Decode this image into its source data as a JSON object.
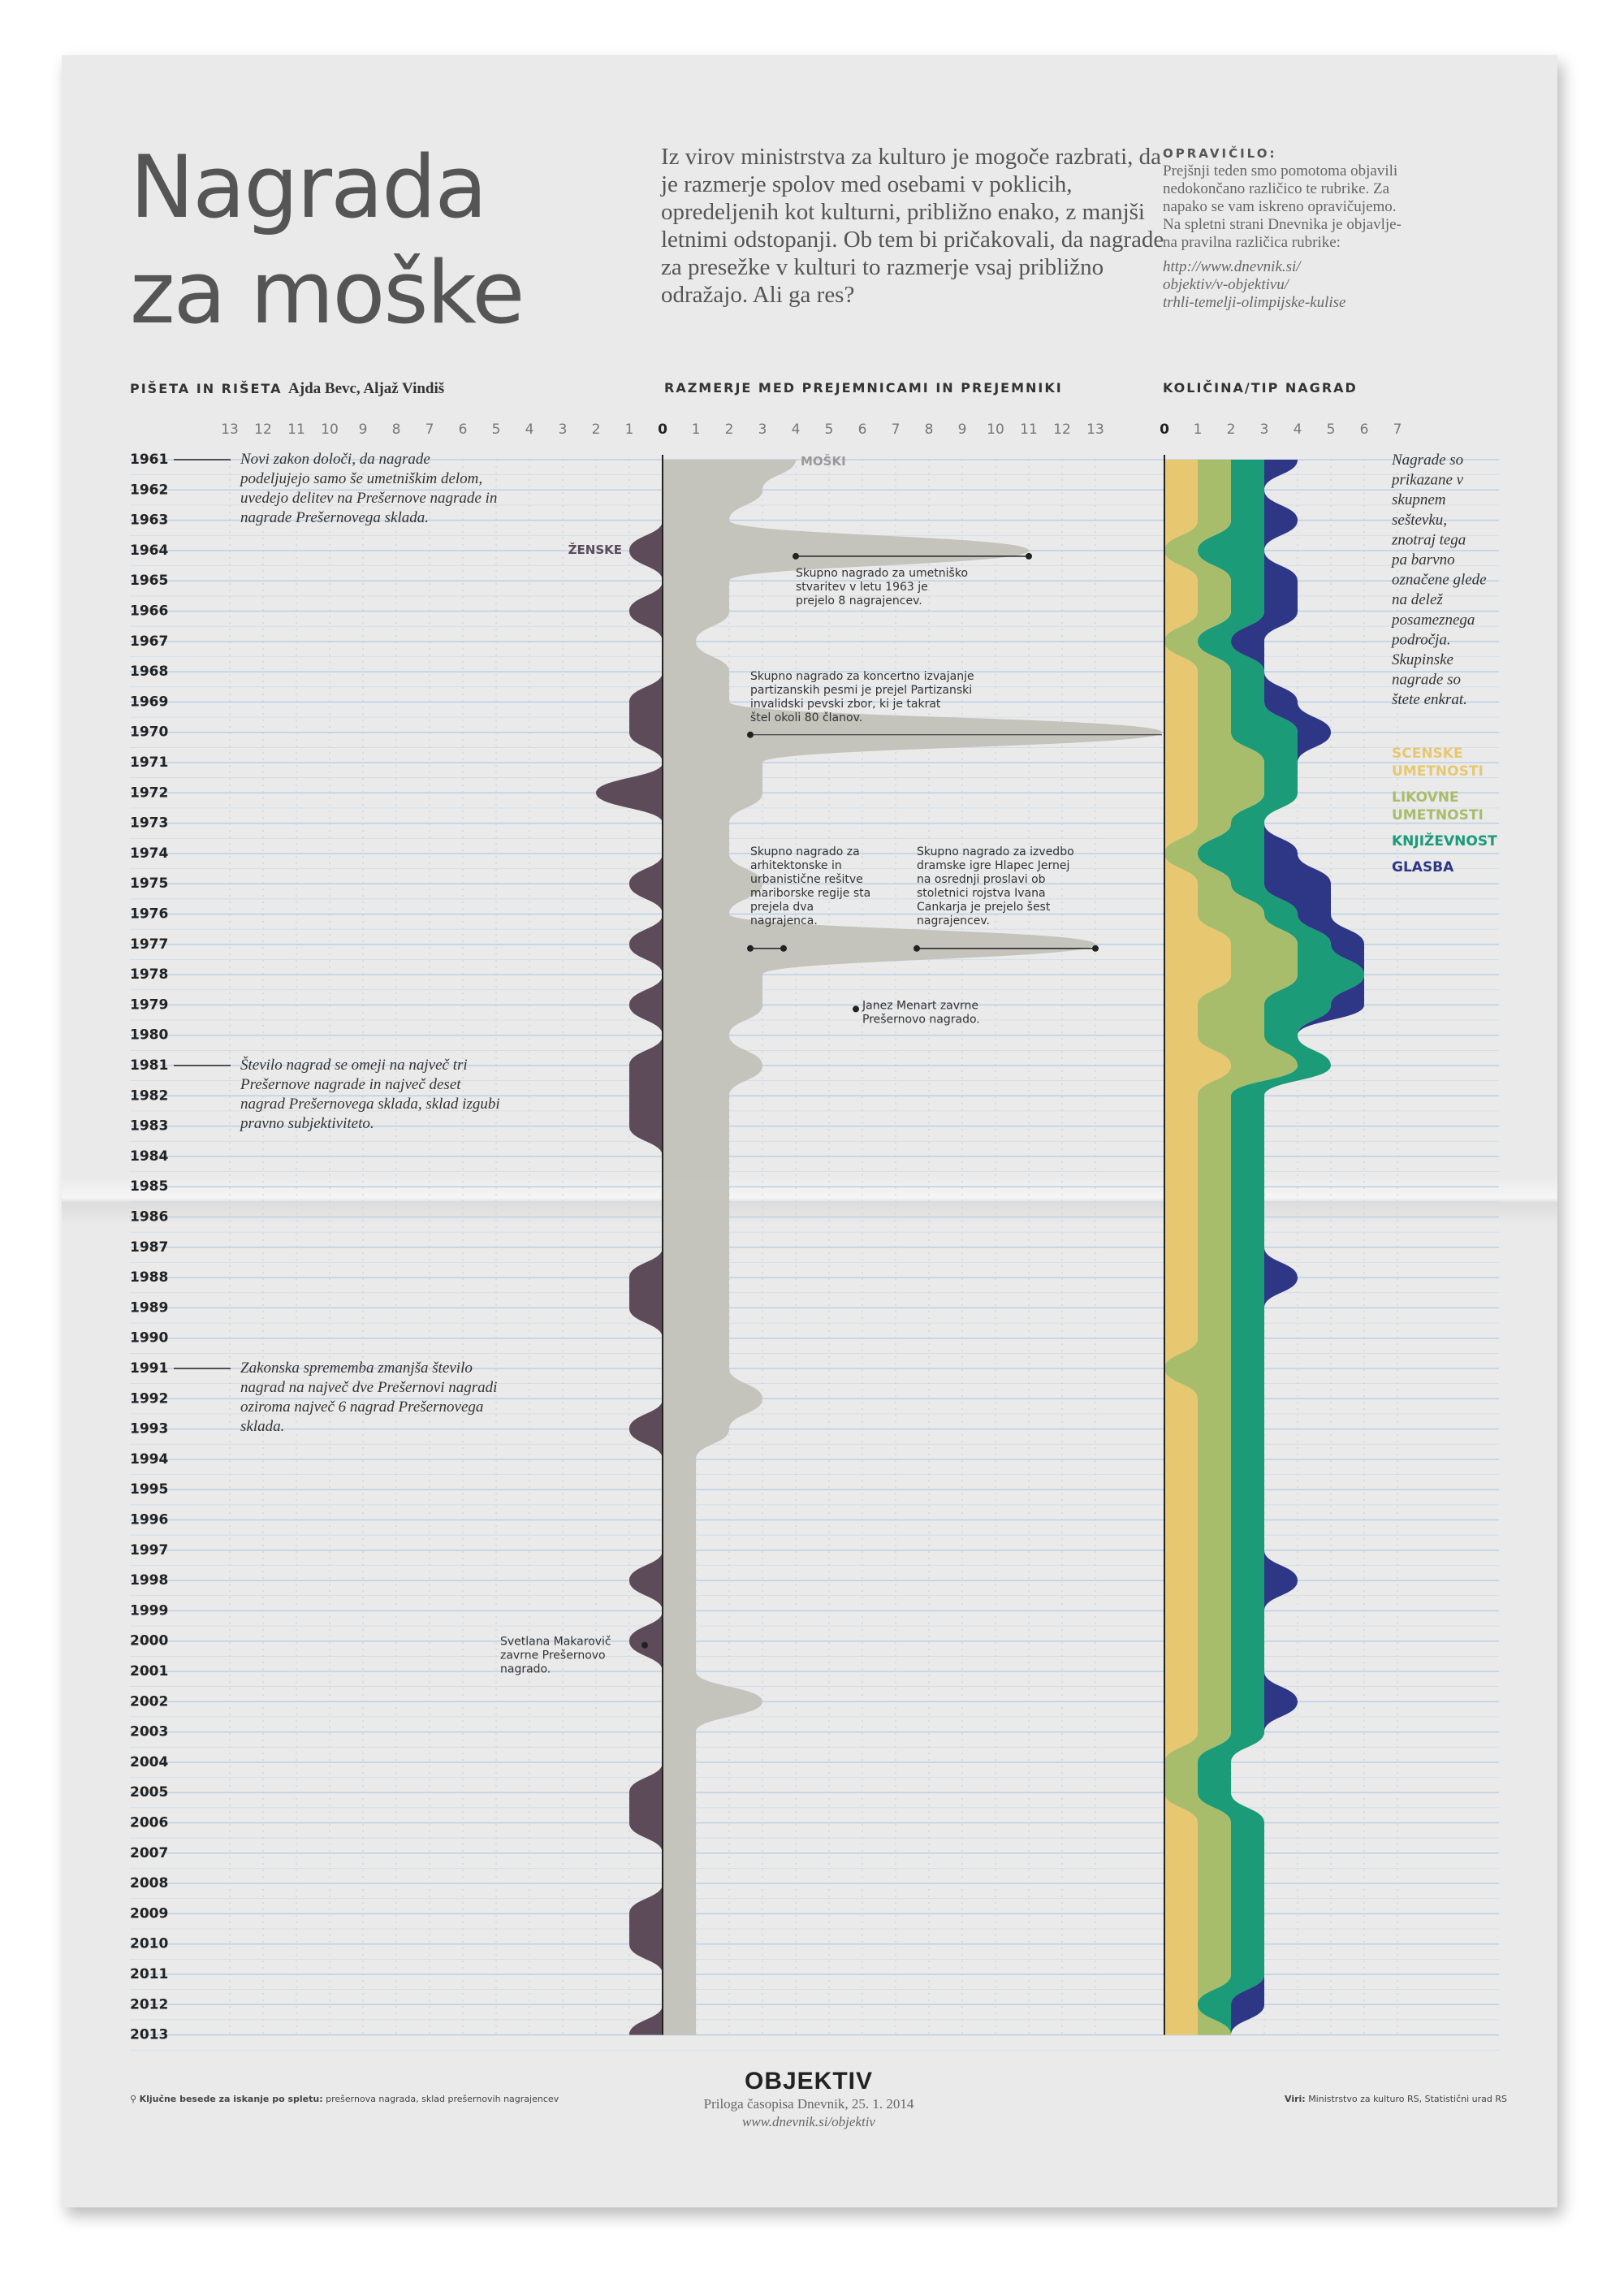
{
  "header": {
    "title_line1": "Nagrada",
    "title_line2": "za moške",
    "intro": "Iz virov ministrstva za kulturo je mogoče razbrati, da je razmerje spolov med osebami v poklicih, opredeljenih kot kulturni, približno enako, z manjši letnimi odstopanji. Ob tem bi pričakovali, da nagrade za presežke v kulturi to razmerje vsaj približno odražajo. Ali ga res?",
    "correction_heading": "OPRAVIČILO:",
    "correction_text": "Prejšnji teden smo pomotoma objavili nedokončano različico te rubrike. Za napako se vam iskreno opravičujemo. Na spletni strani Dnevnika je objavlje-na pravilna različica rubrike:",
    "correction_link_1": "http://www.dnevnik.si/",
    "correction_link_2": "objektiv/v-objektivu/",
    "correction_link_3": "trhli-temelji-olimpijske-kulise"
  },
  "sections": {
    "credits_label": "PIŠETA IN RIŠETA",
    "credits_names": "Ajda Bevc, Aljaž Vindiš",
    "ratio_label": "RAZMERJE MED PREJEMNICAMI IN PREJEMNIKI",
    "count_label": "KOLIČINA/TIP NAGRAD"
  },
  "colors": {
    "women": "#5e4b59",
    "men": "#c2c2bb",
    "scenske": "#e7c870",
    "likovne": "#a8bd6b",
    "knjizevnost": "#1b9b78",
    "glasba": "#2e3686",
    "background": "#eaeaea",
    "grid_line": "#bcd0e3"
  },
  "chart_data": [
    {
      "type": "area",
      "title": "RAZMERJE MED PREJEMNICAMI IN PREJEMNIKI",
      "x": [
        1961,
        1962,
        1963,
        1964,
        1965,
        1966,
        1967,
        1968,
        1969,
        1970,
        1971,
        1972,
        1973,
        1974,
        1975,
        1976,
        1977,
        1978,
        1979,
        1980,
        1981,
        1982,
        1983,
        1984,
        1985,
        1986,
        1987,
        1988,
        1989,
        1990,
        1991,
        1992,
        1993,
        1994,
        1995,
        1996,
        1997,
        1998,
        1999,
        2000,
        2001,
        2002,
        2003,
        2004,
        2005,
        2006,
        2007,
        2008,
        2009,
        2010,
        2011,
        2012,
        2013
      ],
      "left_ticks": [
        "13",
        "12",
        "11",
        "10",
        "9",
        "8",
        "7",
        "6",
        "5",
        "4",
        "3",
        "2",
        "1"
      ],
      "right_ticks": [
        "0",
        "1",
        "2",
        "3",
        "4",
        "5",
        "6",
        "7",
        "8",
        "9",
        "10",
        "11",
        "12",
        "13"
      ],
      "series": [
        {
          "name": "MOŠKI",
          "values": [
            4,
            3,
            2,
            11,
            2,
            2,
            1,
            2,
            2,
            15,
            3,
            3,
            2,
            2,
            3,
            2,
            13,
            3,
            3,
            2,
            3,
            2,
            2,
            2,
            2,
            2,
            2,
            2,
            2,
            2,
            2,
            3,
            2,
            1,
            1,
            1,
            1,
            1,
            1,
            1,
            1,
            3,
            1,
            1,
            1,
            1,
            1,
            1,
            1,
            1,
            1,
            1,
            1
          ]
        },
        {
          "name": "ŽENSKE",
          "values": [
            0,
            0,
            0,
            1,
            0,
            1,
            0,
            0,
            1,
            1,
            0,
            2,
            0,
            0,
            1,
            0,
            1,
            0,
            1,
            0,
            1,
            1,
            1,
            0,
            0,
            0,
            0,
            1,
            1,
            0,
            0,
            0,
            1,
            0,
            0,
            0,
            0,
            1,
            0,
            1,
            0,
            0,
            0,
            0,
            1,
            1,
            0,
            0,
            1,
            1,
            0,
            0,
            1
          ]
        }
      ],
      "annotations": [
        "Skupno nagrado za umetniško stvaritev v letu 1963 je prejelo 8 nagrajencev.",
        "Skupno nagrado za koncertno izvajanje partizanskih pesmi je prejel Partizanski invalidski pevski zbor, ki je takrat štel okoli 80 članov.",
        "Skupno nagrado za arhitektonske in urbanistične rešitve mariborske regije sta prejela dva nagrajenca.",
        "Skupno nagrado za izvedbo dramske igre Hlapec Jernej na osrednji proslavi ob stoletnici rojstva Ivana Cankarja je prejelo šest nagrajencev.",
        "Janez Menart zavrne Prešernovo nagrado.",
        "Svetlana Makarovič zavrne Prešernovo nagrado."
      ]
    },
    {
      "type": "area",
      "title": "KOLIČINA/TIP NAGRAD",
      "x": [
        1961,
        1962,
        1963,
        1964,
        1965,
        1966,
        1967,
        1968,
        1969,
        1970,
        1971,
        1972,
        1973,
        1974,
        1975,
        1976,
        1977,
        1978,
        1979,
        1980,
        1981,
        1982,
        1983,
        1984,
        1985,
        1986,
        1987,
        1988,
        1989,
        1990,
        1991,
        1992,
        1993,
        1994,
        1995,
        1996,
        1997,
        1998,
        1999,
        2000,
        2001,
        2002,
        2003,
        2004,
        2005,
        2006,
        2007,
        2008,
        2009,
        2010,
        2011,
        2012,
        2013
      ],
      "ticks": [
        "0",
        "1",
        "2",
        "3",
        "4",
        "5",
        "6",
        "7"
      ],
      "series": [
        {
          "name": "SCENSKE UMETNOSTI",
          "values": [
            1,
            1,
            1,
            0,
            1,
            1,
            0,
            1,
            1,
            1,
            1,
            1,
            1,
            0,
            1,
            1,
            2,
            2,
            1,
            1,
            2,
            1,
            1,
            1,
            1,
            1,
            1,
            1,
            1,
            1,
            0,
            1,
            1,
            1,
            1,
            1,
            1,
            1,
            1,
            1,
            1,
            1,
            1,
            0,
            0,
            1,
            1,
            1,
            1,
            1,
            1,
            1,
            1
          ]
        },
        {
          "name": "LIKOVNE UMETNOSTI",
          "values": [
            1,
            1,
            1,
            1,
            1,
            1,
            1,
            1,
            1,
            1,
            2,
            2,
            1,
            1,
            1,
            2,
            2,
            2,
            2,
            2,
            2,
            1,
            1,
            1,
            1,
            1,
            1,
            1,
            1,
            1,
            2,
            1,
            1,
            1,
            1,
            1,
            1,
            1,
            1,
            1,
            1,
            1,
            1,
            1,
            1,
            1,
            1,
            1,
            1,
            1,
            1,
            0,
            1
          ]
        },
        {
          "name": "KNJIŽEVNOST",
          "values": [
            1,
            1,
            1,
            2,
            1,
            1,
            1,
            1,
            1,
            2,
            1,
            1,
            1,
            2,
            1,
            1,
            1,
            2,
            2,
            1,
            1,
            1,
            1,
            1,
            1,
            1,
            1,
            1,
            1,
            1,
            1,
            1,
            1,
            1,
            1,
            1,
            1,
            1,
            1,
            1,
            1,
            1,
            1,
            1,
            1,
            1,
            1,
            1,
            1,
            1,
            1,
            1,
            0
          ]
        },
        {
          "name": "GLASBA",
          "values": [
            1,
            0,
            1,
            0,
            1,
            1,
            1,
            0,
            1,
            1,
            0,
            0,
            0,
            1,
            2,
            1,
            1,
            0,
            1,
            0,
            0,
            0,
            0,
            0,
            0,
            0,
            0,
            1,
            0,
            0,
            0,
            0,
            0,
            0,
            0,
            0,
            0,
            1,
            0,
            0,
            0,
            1,
            0,
            0,
            0,
            0,
            0,
            0,
            0,
            0,
            0,
            1,
            0
          ]
        }
      ]
    }
  ],
  "notes": {
    "note_1961": "Novi zakon določi, da nagrade podeljujejo samo še umetniškim delom, uvedejo delitev na Prešernove nagrade in nagrade Prešernovega sklada.",
    "note_1981": "Število nagrad se omeji na največ tri Prešernove nagrade in največ deset nagrad Prešernovega sklada, sklad izgubi pravno subjektiviteto.",
    "note_1991": "Zakonska sprememba zmanjša število nagrad na največ dve Prešernovi nagradi oziroma največ 6 nagrad Prešernovega sklada.",
    "right_note": "Nagrade so prikazane v skupnem seštevku, znotraj tega pa barvno označene glede na delež posameznega področja. Skupinske nagrade so štete enkrat."
  },
  "footer": {
    "logo": "OBJEKTIV",
    "subtitle": "Priloga časopisa Dnevnik, 25. 1. 2014",
    "url": "www.dnevnik.si/objektiv",
    "keywords_label": "Ključne besede za iskanje po spletu:",
    "keywords": "prešernova nagrada, sklad prešernovih nagrajencev",
    "sources_label": "Viri:",
    "sources": "Ministrstvo za kulturo RS, Statistični urad RS"
  }
}
